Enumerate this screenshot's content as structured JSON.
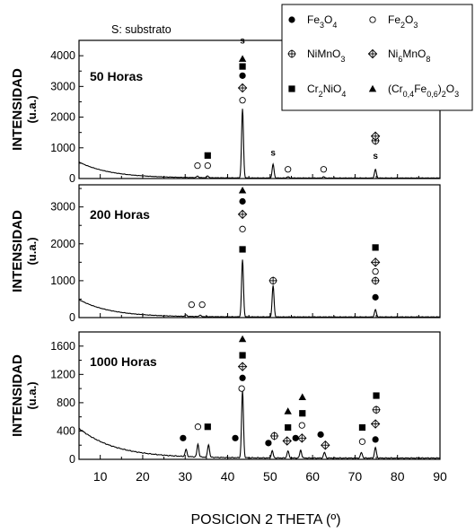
{
  "chart_data": {
    "type": "line",
    "substrate_note": "S: substrato",
    "xlabel": "POSICION 2 THETA (º)",
    "ylabel_line1": "INTENSIDAD",
    "ylabel_line2": "(u.a.)",
    "xlim": [
      5,
      90
    ],
    "xticks": [
      "10",
      "20",
      "30",
      "40",
      "50",
      "60",
      "70",
      "80",
      "90"
    ],
    "legend": [
      {
        "symbol": "filled-circle",
        "html": "Fe<tspan baseline-shift='sub' font-size='9'>3</tspan>O<tspan baseline-shift='sub' font-size='9'>4</tspan>",
        "label": "Fe3O4"
      },
      {
        "symbol": "open-circle",
        "label": "Fe2O3"
      },
      {
        "symbol": "crossed-circle",
        "label": "NiMnO3"
      },
      {
        "symbol": "crossed-diamond",
        "label": "Ni6MnO8"
      },
      {
        "symbol": "filled-square",
        "label": "Cr2NiO4"
      },
      {
        "symbol": "filled-triangle",
        "label": "(Cr0,4Fe0,6)2O3"
      }
    ],
    "panels": [
      {
        "title": "50 Horas",
        "ylim": [
          0,
          4500
        ],
        "yticks": [
          "0",
          "1000",
          "2000",
          "3000",
          "4000"
        ],
        "background_start": 520,
        "background_decay": 2.6,
        "peaks": [
          {
            "x": 32.9,
            "y": 50
          },
          {
            "x": 35.3,
            "y": 60
          },
          {
            "x": 43.5,
            "y": 2250
          },
          {
            "x": 50.7,
            "y": 450
          },
          {
            "x": 54.2,
            "y": 40
          },
          {
            "x": 62.6,
            "y": 40
          },
          {
            "x": 74.8,
            "y": 280
          }
        ],
        "markers": [
          {
            "x": 32.9,
            "y": 420,
            "sym": "open-circle"
          },
          {
            "x": 35.3,
            "y": 420,
            "sym": "open-circle"
          },
          {
            "x": 35.3,
            "y": 750,
            "sym": "filled-square"
          },
          {
            "x": 43.5,
            "y": 2550,
            "sym": "open-circle"
          },
          {
            "x": 43.5,
            "y": 2950,
            "sym": "crossed-diamond"
          },
          {
            "x": 43.5,
            "y": 3350,
            "sym": "filled-circle"
          },
          {
            "x": 43.5,
            "y": 3650,
            "sym": "filled-square"
          },
          {
            "x": 43.5,
            "y": 3900,
            "sym": "filled-triangle"
          },
          {
            "x": 54.2,
            "y": 300,
            "sym": "open-circle"
          },
          {
            "x": 62.6,
            "y": 300,
            "sym": "open-circle"
          },
          {
            "x": 74.8,
            "y": 1230,
            "sym": "crossed-circle"
          },
          {
            "x": 74.8,
            "y": 1380,
            "sym": "crossed-diamond"
          }
        ],
        "s_labels": [
          {
            "x": 43.5,
            "y": 4400,
            "text": "s"
          },
          {
            "x": 50.7,
            "y": 750,
            "text": "s"
          },
          {
            "x": 74.8,
            "y": 650,
            "text": "s"
          }
        ]
      },
      {
        "title": "200 Horas",
        "ylim": [
          0,
          3600
        ],
        "yticks": [
          "0",
          "1000",
          "2000",
          "3000"
        ],
        "background_start": 470,
        "background_decay": 2.6,
        "peaks": [
          {
            "x": 30.2,
            "y": 40
          },
          {
            "x": 33.5,
            "y": 40
          },
          {
            "x": 43.5,
            "y": 1550
          },
          {
            "x": 50.7,
            "y": 850
          },
          {
            "x": 74.8,
            "y": 200
          }
        ],
        "markers": [
          {
            "x": 31.5,
            "y": 350,
            "sym": "open-circle"
          },
          {
            "x": 34.0,
            "y": 350,
            "sym": "open-circle"
          },
          {
            "x": 43.5,
            "y": 1850,
            "sym": "filled-square"
          },
          {
            "x": 43.5,
            "y": 2400,
            "sym": "open-circle"
          },
          {
            "x": 43.5,
            "y": 2800,
            "sym": "crossed-diamond"
          },
          {
            "x": 43.5,
            "y": 3150,
            "sym": "filled-circle"
          },
          {
            "x": 43.5,
            "y": 3450,
            "sym": "filled-triangle"
          },
          {
            "x": 50.7,
            "y": 1000,
            "sym": "crossed-circle"
          },
          {
            "x": 74.8,
            "y": 550,
            "sym": "filled-circle"
          },
          {
            "x": 74.8,
            "y": 1000,
            "sym": "crossed-circle"
          },
          {
            "x": 74.8,
            "y": 1250,
            "sym": "open-circle"
          },
          {
            "x": 74.8,
            "y": 1500,
            "sym": "crossed-diamond"
          },
          {
            "x": 74.8,
            "y": 1900,
            "sym": "filled-square"
          }
        ],
        "s_labels": []
      },
      {
        "title": "1000 Horas",
        "ylim": [
          0,
          1800
        ],
        "yticks": [
          "0",
          "400",
          "800",
          "1200",
          "1600"
        ],
        "background_start": 420,
        "background_decay": 3.0,
        "peaks": [
          {
            "x": 30.2,
            "y": 100
          },
          {
            "x": 33.0,
            "y": 180
          },
          {
            "x": 35.5,
            "y": 180
          },
          {
            "x": 43.5,
            "y": 950
          },
          {
            "x": 50.5,
            "y": 100
          },
          {
            "x": 54.2,
            "y": 100
          },
          {
            "x": 57.2,
            "y": 110
          },
          {
            "x": 62.8,
            "y": 80
          },
          {
            "x": 71.5,
            "y": 80
          },
          {
            "x": 74.8,
            "y": 150
          }
        ],
        "markers": [
          {
            "x": 29.5,
            "y": 300,
            "sym": "filled-circle"
          },
          {
            "x": 33.0,
            "y": 460,
            "sym": "open-circle"
          },
          {
            "x": 35.3,
            "y": 460,
            "sym": "filled-square"
          },
          {
            "x": 41.8,
            "y": 300,
            "sym": "filled-circle"
          },
          {
            "x": 43.3,
            "y": 1000,
            "sym": "open-circle"
          },
          {
            "x": 43.5,
            "y": 1150,
            "sym": "filled-circle"
          },
          {
            "x": 43.5,
            "y": 1310,
            "sym": "crossed-diamond"
          },
          {
            "x": 43.5,
            "y": 1470,
            "sym": "filled-square"
          },
          {
            "x": 43.5,
            "y": 1700,
            "sym": "filled-triangle"
          },
          {
            "x": 49.6,
            "y": 230,
            "sym": "filled-circle"
          },
          {
            "x": 51.0,
            "y": 330,
            "sym": "crossed-circle"
          },
          {
            "x": 54.0,
            "y": 260,
            "sym": "crossed-diamond"
          },
          {
            "x": 54.2,
            "y": 450,
            "sym": "filled-square"
          },
          {
            "x": 54.2,
            "y": 680,
            "sym": "filled-triangle"
          },
          {
            "x": 56.0,
            "y": 300,
            "sym": "filled-circle"
          },
          {
            "x": 57.5,
            "y": 300,
            "sym": "crossed-diamond"
          },
          {
            "x": 57.5,
            "y": 480,
            "sym": "open-circle"
          },
          {
            "x": 57.6,
            "y": 650,
            "sym": "filled-square"
          },
          {
            "x": 57.6,
            "y": 880,
            "sym": "filled-triangle"
          },
          {
            "x": 61.9,
            "y": 350,
            "sym": "filled-circle"
          },
          {
            "x": 63.0,
            "y": 200,
            "sym": "crossed-diamond"
          },
          {
            "x": 71.7,
            "y": 250,
            "sym": "open-circle"
          },
          {
            "x": 71.7,
            "y": 450,
            "sym": "filled-square"
          },
          {
            "x": 74.8,
            "y": 280,
            "sym": "filled-circle"
          },
          {
            "x": 74.8,
            "y": 500,
            "sym": "crossed-diamond"
          },
          {
            "x": 75.0,
            "y": 700,
            "sym": "crossed-circle"
          },
          {
            "x": 75.0,
            "y": 900,
            "sym": "filled-square"
          }
        ],
        "s_labels": []
      }
    ]
  }
}
